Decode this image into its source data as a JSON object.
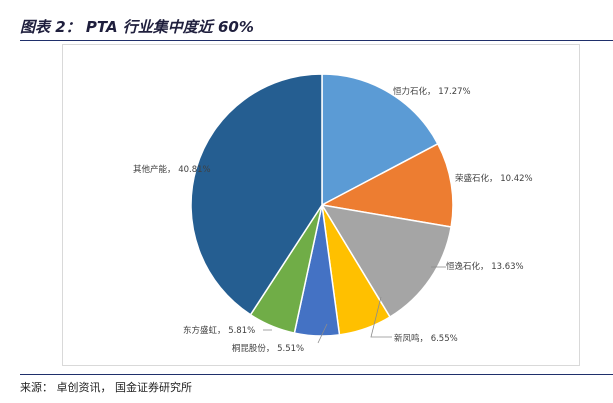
{
  "figure": {
    "title": "图表 2： PTA 行业集中度近 60%",
    "source": "来源： 卓创资讯， 国金证券研究所"
  },
  "chart_data": {
    "type": "pie",
    "title": "",
    "start_angle_deg": 0,
    "direction": "clockwise",
    "slices": [
      {
        "label": "恒力石化",
        "value": 17.27,
        "display": "恒力石化， 17.27%",
        "color": "#5b9bd5"
      },
      {
        "label": "荣盛石化",
        "value": 10.42,
        "display": "荣盛石化， 10.42%",
        "color": "#ed7d31"
      },
      {
        "label": "恒逸石化",
        "value": 13.63,
        "display": "恒逸石化， 13.63%",
        "color": "#a5a5a5"
      },
      {
        "label": "新凤鸣",
        "value": 6.55,
        "display": "新凤鸣， 6.55%",
        "color": "#ffc000"
      },
      {
        "label": "桐昆股份",
        "value": 5.51,
        "display": "桐昆股份， 5.51%",
        "color": "#4472c4"
      },
      {
        "label": "东方盛虹",
        "value": 5.81,
        "display": "东方盛虹， 5.81%",
        "color": "#70ad47"
      },
      {
        "label": "其他产能",
        "value": 40.81,
        "display": "其他产能， 40.81%",
        "color": "#255e91"
      }
    ]
  }
}
